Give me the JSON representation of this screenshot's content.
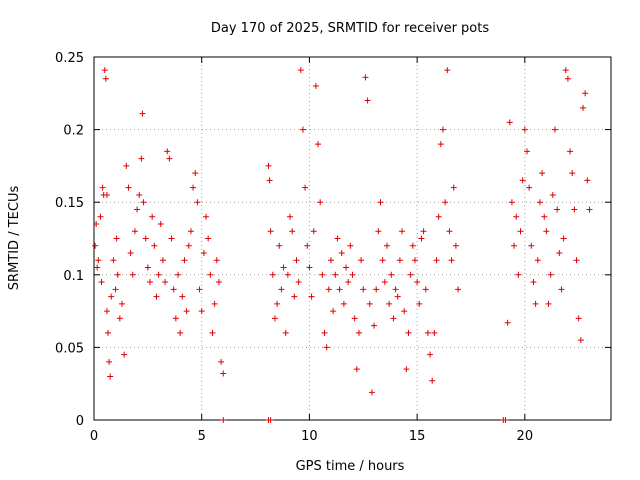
{
  "chart_data": {
    "type": "scatter",
    "title": "Day 170 of 2025, SRMTID for receiver pots",
    "xlabel": "GPS time / hours",
    "ylabel": "SRMTID / TECUs",
    "xlim": [
      0,
      24
    ],
    "ylim": [
      0,
      0.25
    ],
    "grid": true,
    "marker": "+",
    "series_color": "#e00000",
    "x_ticks": [
      0,
      5,
      10,
      15,
      20
    ],
    "x_tick_labels": [
      "0",
      "5",
      "10",
      "15",
      "20"
    ],
    "y_ticks": [
      0,
      0.05,
      0.1,
      0.15,
      0.2,
      0.25
    ],
    "y_tick_labels": [
      "0",
      "0.05",
      "0.1",
      "0.15",
      "0.2",
      "0.25"
    ],
    "series": [
      {
        "name": "SRMTID",
        "points": [
          [
            0.05,
            0.12
          ],
          [
            0.1,
            0.135
          ],
          [
            0.15,
            0.105
          ],
          [
            0.2,
            0.11
          ],
          [
            0.3,
            0.14
          ],
          [
            0.35,
            0.095
          ],
          [
            0.4,
            0.16
          ],
          [
            0.45,
            0.155
          ],
          [
            0.5,
            0.241
          ],
          [
            0.55,
            0.235
          ],
          [
            0.6,
            0.155
          ],
          [
            0.6,
            0.075
          ],
          [
            0.65,
            0.06
          ],
          [
            0.7,
            0.04
          ],
          [
            0.75,
            0.03
          ],
          [
            0.8,
            0.085
          ],
          [
            0.9,
            0.11
          ],
          [
            1.0,
            0.09
          ],
          [
            1.05,
            0.125
          ],
          [
            1.1,
            0.1
          ],
          [
            1.2,
            0.07
          ],
          [
            1.3,
            0.08
          ],
          [
            1.4,
            0.045
          ],
          [
            1.5,
            0.175
          ],
          [
            1.6,
            0.16
          ],
          [
            1.7,
            0.115
          ],
          [
            1.8,
            0.1
          ],
          [
            1.9,
            0.13
          ],
          [
            2.0,
            0.145
          ],
          [
            2.1,
            0.155
          ],
          [
            2.2,
            0.18
          ],
          [
            2.25,
            0.211
          ],
          [
            2.3,
            0.15
          ],
          [
            2.4,
            0.125
          ],
          [
            2.5,
            0.105
          ],
          [
            2.6,
            0.095
          ],
          [
            2.7,
            0.14
          ],
          [
            2.8,
            0.12
          ],
          [
            2.9,
            0.085
          ],
          [
            3.0,
            0.1
          ],
          [
            3.1,
            0.135
          ],
          [
            3.2,
            0.11
          ],
          [
            3.3,
            0.095
          ],
          [
            3.4,
            0.185
          ],
          [
            3.5,
            0.18
          ],
          [
            3.6,
            0.125
          ],
          [
            3.7,
            0.09
          ],
          [
            3.8,
            0.07
          ],
          [
            3.9,
            0.1
          ],
          [
            4.0,
            0.06
          ],
          [
            4.1,
            0.085
          ],
          [
            4.2,
            0.11
          ],
          [
            4.3,
            0.075
          ],
          [
            4.4,
            0.12
          ],
          [
            4.5,
            0.13
          ],
          [
            4.6,
            0.16
          ],
          [
            4.7,
            0.17
          ],
          [
            4.8,
            0.15
          ],
          [
            4.9,
            0.09
          ],
          [
            5.0,
            0.075
          ],
          [
            5.1,
            0.115
          ],
          [
            5.2,
            0.14
          ],
          [
            5.3,
            0.125
          ],
          [
            5.4,
            0.1
          ],
          [
            5.5,
            0.06
          ],
          [
            5.6,
            0.08
          ],
          [
            5.7,
            0.11
          ],
          [
            5.8,
            0.095
          ],
          [
            5.9,
            0.04
          ],
          [
            6.0,
            0.032
          ],
          [
            8.1,
            0.175
          ],
          [
            8.15,
            0.165
          ],
          [
            8.2,
            0.13
          ],
          [
            8.3,
            0.1
          ],
          [
            8.4,
            0.07
          ],
          [
            8.5,
            0.08
          ],
          [
            8.6,
            0.12
          ],
          [
            8.7,
            0.09
          ],
          [
            8.8,
            0.105
          ],
          [
            8.9,
            0.06
          ],
          [
            9.0,
            0.1
          ],
          [
            9.1,
            0.14
          ],
          [
            9.2,
            0.13
          ],
          [
            9.3,
            0.085
          ],
          [
            9.4,
            0.11
          ],
          [
            9.5,
            0.095
          ],
          [
            9.6,
            0.241
          ],
          [
            9.7,
            0.2
          ],
          [
            9.8,
            0.16
          ],
          [
            9.9,
            0.12
          ],
          [
            10.0,
            0.105
          ],
          [
            10.1,
            0.085
          ],
          [
            10.2,
            0.13
          ],
          [
            10.3,
            0.23
          ],
          [
            10.4,
            0.19
          ],
          [
            10.5,
            0.15
          ],
          [
            10.6,
            0.1
          ],
          [
            10.7,
            0.06
          ],
          [
            10.8,
            0.05
          ],
          [
            10.9,
            0.09
          ],
          [
            11.0,
            0.11
          ],
          [
            11.1,
            0.075
          ],
          [
            11.2,
            0.1
          ],
          [
            11.3,
            0.125
          ],
          [
            11.4,
            0.09
          ],
          [
            11.5,
            0.115
          ],
          [
            11.6,
            0.08
          ],
          [
            11.7,
            0.105
          ],
          [
            11.8,
            0.095
          ],
          [
            11.9,
            0.12
          ],
          [
            12.0,
            0.1
          ],
          [
            12.1,
            0.07
          ],
          [
            12.2,
            0.035
          ],
          [
            12.3,
            0.06
          ],
          [
            12.4,
            0.11
          ],
          [
            12.5,
            0.09
          ],
          [
            12.6,
            0.236
          ],
          [
            12.7,
            0.22
          ],
          [
            12.8,
            0.08
          ],
          [
            12.9,
            0.019
          ],
          [
            13.0,
            0.065
          ],
          [
            13.1,
            0.09
          ],
          [
            13.2,
            0.13
          ],
          [
            13.3,
            0.15
          ],
          [
            13.4,
            0.11
          ],
          [
            13.5,
            0.095
          ],
          [
            13.6,
            0.12
          ],
          [
            13.7,
            0.08
          ],
          [
            13.8,
            0.1
          ],
          [
            13.9,
            0.07
          ],
          [
            14.0,
            0.09
          ],
          [
            14.1,
            0.085
          ],
          [
            14.2,
            0.11
          ],
          [
            14.3,
            0.13
          ],
          [
            14.4,
            0.075
          ],
          [
            14.5,
            0.035
          ],
          [
            14.6,
            0.06
          ],
          [
            14.7,
            0.1
          ],
          [
            14.8,
            0.12
          ],
          [
            14.9,
            0.11
          ],
          [
            15.0,
            0.095
          ],
          [
            15.1,
            0.08
          ],
          [
            15.2,
            0.125
          ],
          [
            15.3,
            0.13
          ],
          [
            15.4,
            0.09
          ],
          [
            15.5,
            0.06
          ],
          [
            15.6,
            0.045
          ],
          [
            15.7,
            0.027
          ],
          [
            15.8,
            0.06
          ],
          [
            15.9,
            0.11
          ],
          [
            16.0,
            0.14
          ],
          [
            16.1,
            0.19
          ],
          [
            16.2,
            0.2
          ],
          [
            16.3,
            0.15
          ],
          [
            16.4,
            0.241
          ],
          [
            16.5,
            0.13
          ],
          [
            16.6,
            0.11
          ],
          [
            16.7,
            0.16
          ],
          [
            16.8,
            0.12
          ],
          [
            16.9,
            0.09
          ],
          [
            19.2,
            0.067
          ],
          [
            19.3,
            0.205
          ],
          [
            19.4,
            0.15
          ],
          [
            19.5,
            0.12
          ],
          [
            19.6,
            0.14
          ],
          [
            19.7,
            0.1
          ],
          [
            19.8,
            0.13
          ],
          [
            19.9,
            0.165
          ],
          [
            20.0,
            0.2
          ],
          [
            20.1,
            0.185
          ],
          [
            20.2,
            0.16
          ],
          [
            20.3,
            0.12
          ],
          [
            20.4,
            0.095
          ],
          [
            20.5,
            0.08
          ],
          [
            20.6,
            0.11
          ],
          [
            20.7,
            0.15
          ],
          [
            20.8,
            0.17
          ],
          [
            20.9,
            0.14
          ],
          [
            21.0,
            0.13
          ],
          [
            21.1,
            0.08
          ],
          [
            21.2,
            0.1
          ],
          [
            21.3,
            0.155
          ],
          [
            21.4,
            0.2
          ],
          [
            21.5,
            0.145
          ],
          [
            21.6,
            0.115
          ],
          [
            21.7,
            0.09
          ],
          [
            21.8,
            0.125
          ],
          [
            21.9,
            0.241
          ],
          [
            22.0,
            0.235
          ],
          [
            22.1,
            0.185
          ],
          [
            22.2,
            0.17
          ],
          [
            22.3,
            0.145
          ],
          [
            22.4,
            0.11
          ],
          [
            22.5,
            0.07
          ],
          [
            22.6,
            0.055
          ],
          [
            22.7,
            0.215
          ],
          [
            22.8,
            0.225
          ],
          [
            22.9,
            0.165
          ],
          [
            23.0,
            0.145
          ]
        ]
      }
    ],
    "zero_markers_x": [
      6.0,
      8.1,
      8.2,
      19.0,
      19.1
    ]
  }
}
